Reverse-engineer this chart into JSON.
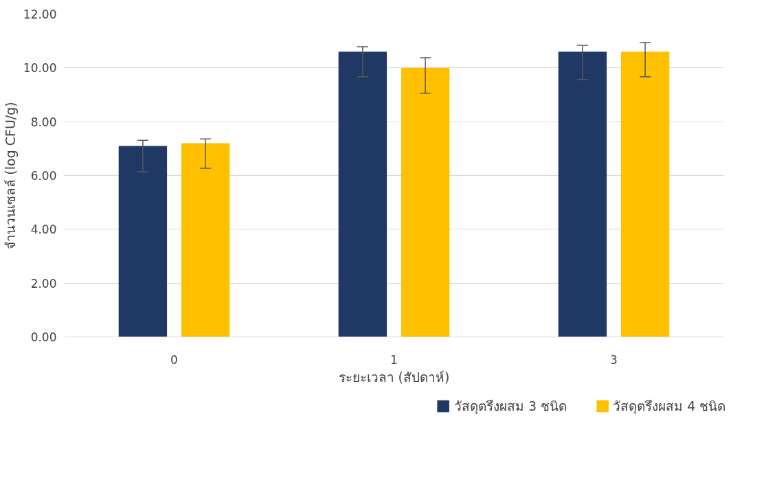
{
  "chart_data": {
    "type": "bar",
    "xlabel": "ระยะเวลา (สัปดาห์)",
    "ylabel": "จำนวนเซลล์ (log CFU/g)",
    "categories": [
      "0",
      "1",
      "3"
    ],
    "series": [
      {
        "name": "วัสดุตรึงผสม 3 ชนิด",
        "color": "#203864",
        "values": [
          7.1,
          10.6,
          10.6
        ],
        "errors": [
          [
            6.14,
            7.31
          ],
          [
            9.67,
            10.79
          ],
          [
            9.57,
            10.84
          ]
        ]
      },
      {
        "name": "วัสดุตรึงผสม 4 ชนิด",
        "color": "#ffc000",
        "values": [
          7.2,
          10.0,
          10.6
        ],
        "errors": [
          [
            6.27,
            7.36
          ],
          [
            9.06,
            10.38
          ],
          [
            9.67,
            10.94
          ]
        ]
      }
    ],
    "ylim": [
      0,
      12
    ],
    "yticks": [
      {
        "value": 0,
        "label": "0.00"
      },
      {
        "value": 2,
        "label": "2.00"
      },
      {
        "value": 4,
        "label": "4.00"
      },
      {
        "value": 6,
        "label": "6.00"
      },
      {
        "value": 8,
        "label": "8.00"
      },
      {
        "value": 10,
        "label": "10.00"
      },
      {
        "value": 12,
        "label": "12.00"
      }
    ],
    "grid": "y",
    "legend": "bottom"
  }
}
